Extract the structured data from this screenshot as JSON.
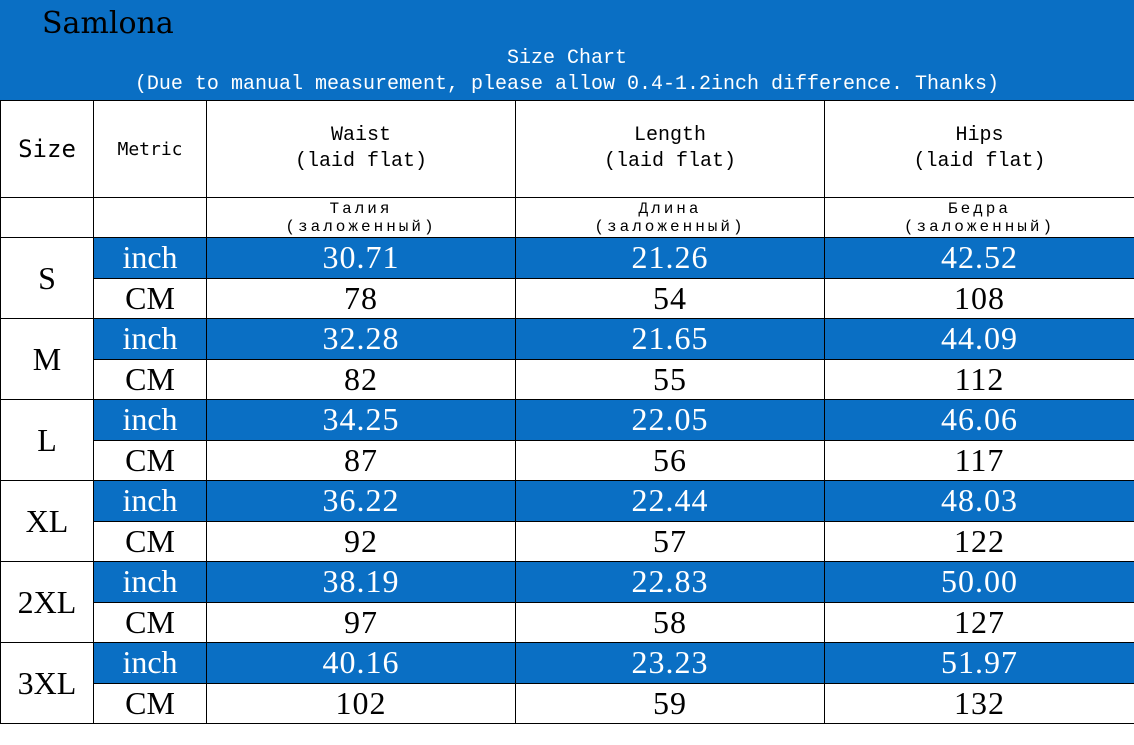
{
  "header": {
    "brand": "Samlona",
    "title": "Size Chart",
    "subtitle": "(Due to manual measurement, please allow 0.4-1.2inch difference. Thanks)"
  },
  "columns": {
    "size": "Size",
    "metric": "Metric",
    "waist": {
      "line1": "Waist",
      "line2": "(laid flat)",
      "ru1": "Талия",
      "ru2": "(заложенный)"
    },
    "length": {
      "line1": "Length",
      "line2": "(laid flat)",
      "ru1": "Длина",
      "ru2": "(заложенный)"
    },
    "hips": {
      "line1": "Hips",
      "line2": "(laid flat)",
      "ru1": "Бедра",
      "ru2": "(заложенный)"
    }
  },
  "units": {
    "inch": "inch",
    "cm": "CM"
  },
  "rows": [
    {
      "size": "S",
      "inch": [
        "30.71",
        "21.26",
        "42.52"
      ],
      "cm": [
        "78",
        "54",
        "108"
      ]
    },
    {
      "size": "M",
      "inch": [
        "32.28",
        "21.65",
        "44.09"
      ],
      "cm": [
        "82",
        "55",
        "112"
      ]
    },
    {
      "size": "L",
      "inch": [
        "34.25",
        "22.05",
        "46.06"
      ],
      "cm": [
        "87",
        "56",
        "117"
      ]
    },
    {
      "size": "XL",
      "inch": [
        "36.22",
        "22.44",
        "48.03"
      ],
      "cm": [
        "92",
        "57",
        "122"
      ]
    },
    {
      "size": "2XL",
      "inch": [
        "38.19",
        "22.83",
        "50.00"
      ],
      "cm": [
        "97",
        "58",
        "127"
      ]
    },
    {
      "size": "3XL",
      "inch": [
        "40.16",
        "23.23",
        "51.97"
      ],
      "cm": [
        "102",
        "59",
        "132"
      ]
    }
  ],
  "colors": {
    "accent": "#0a6fc4"
  }
}
